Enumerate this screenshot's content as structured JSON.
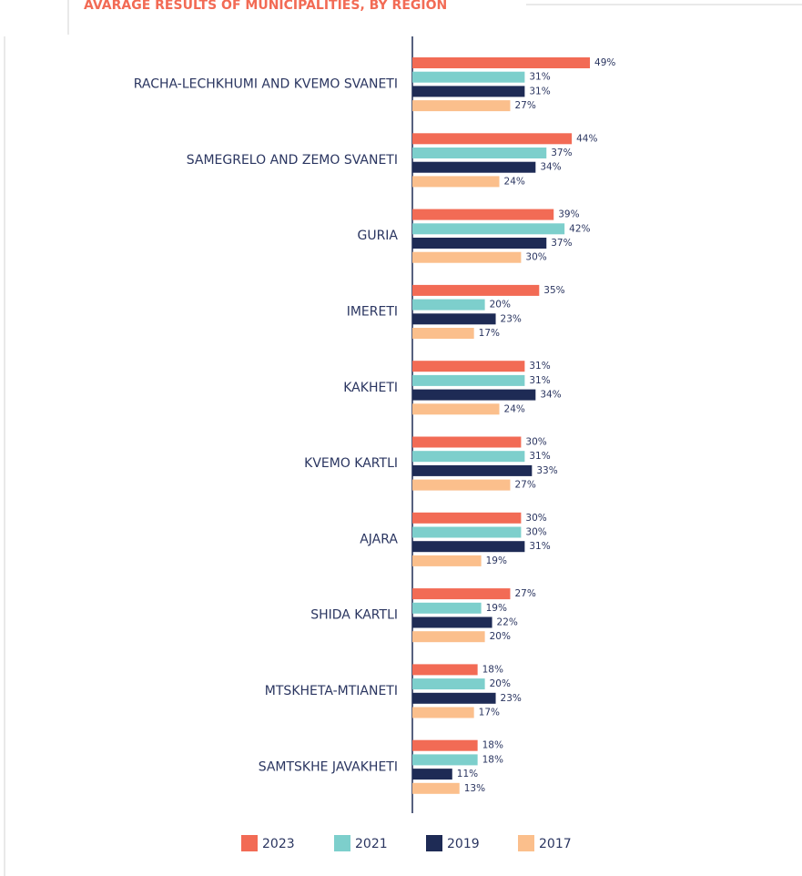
{
  "chart_data": {
    "type": "bar",
    "orientation": "horizontal",
    "title": "AVARAGE RESULTS OF MUNICIPALITIES, BY REGION",
    "categories": [
      "RACHA-LECHKHUMI AND KVEMO SVANETI",
      "SAMEGRELO AND ZEMO SVANETI",
      "GURIA",
      "IMERETI",
      "KAKHETI",
      "KVEMO KARTLI",
      "AJARA",
      "SHIDA KARTLI",
      "MTSKHETA-MTIANETI",
      "SAMTSKHE JAVAKHETI"
    ],
    "series": [
      {
        "name": "2023",
        "color": "#f26b55",
        "values": [
          49,
          44,
          39,
          35,
          31,
          30,
          30,
          27,
          18,
          18
        ],
        "value_labels": [
          "49%",
          "44%",
          "39%",
          "35%",
          "31%",
          "30%",
          "30%",
          "27%",
          "18%",
          "18%"
        ]
      },
      {
        "name": "2021",
        "color": "#7dcfcc",
        "values": [
          31,
          37,
          42,
          20,
          31,
          31,
          30,
          19,
          20,
          18
        ],
        "value_labels": [
          "31%",
          "37%",
          "42%",
          "20%",
          "31%",
          "31%",
          "30%",
          "19%",
          "20%",
          "18%"
        ]
      },
      {
        "name": "2019",
        "color": "#1e2b55",
        "values": [
          31,
          34,
          37,
          23,
          34,
          33,
          31,
          22,
          23,
          11
        ],
        "value_labels": [
          "31%",
          "34%",
          "37%",
          "23%",
          "34%",
          "33%",
          "31%",
          "22%",
          "23%",
          "11%"
        ]
      },
      {
        "name": "2017",
        "color": "#fbbf8c",
        "values": [
          27,
          24,
          30,
          17,
          24,
          27,
          19,
          20,
          17,
          13
        ],
        "value_labels": [
          "27%",
          "24%",
          "30%",
          "17%",
          "24%",
          "27%",
          "19%",
          "20%",
          "17%",
          "13%"
        ]
      }
    ],
    "legend": "bottom"
  }
}
